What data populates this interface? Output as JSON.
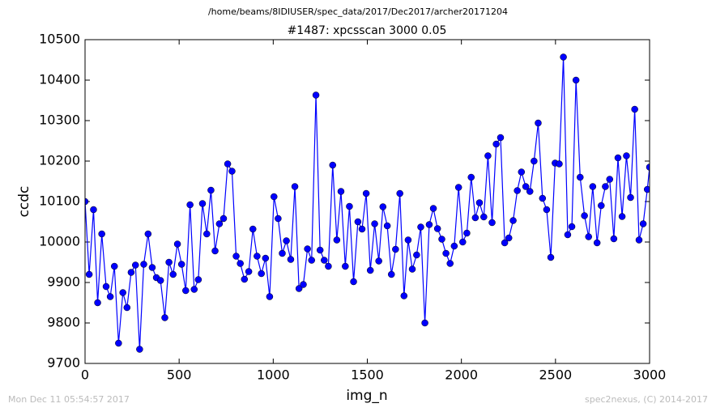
{
  "header": "/home/beams/8IDIUSER/spec_data/2017/Dec2017/archer20171204",
  "footer_left": "Mon Dec 11 05:54:57 2017",
  "footer_right": "spec2nexus, (C) 2014-2017",
  "chart_data": {
    "type": "line",
    "title": "#1487: xpcsscan 3000 0.05",
    "x_label": "img_n",
    "y_label": "ccdc",
    "xlim": [
      0,
      3000
    ],
    "xticks": [
      0,
      500,
      1000,
      1500,
      2000,
      2500,
      3000
    ],
    "ylim": [
      9700,
      10500
    ],
    "yticks": [
      9700,
      9800,
      9900,
      10000,
      10100,
      10200,
      10300,
      10400,
      10500
    ],
    "x": [
      0,
      22,
      45,
      67,
      89,
      112,
      134,
      156,
      178,
      201,
      223,
      245,
      268,
      290,
      312,
      335,
      357,
      379,
      401,
      424,
      446,
      468,
      491,
      513,
      535,
      558,
      580,
      602,
      624,
      647,
      669,
      691,
      714,
      736,
      758,
      781,
      803,
      825,
      847,
      870,
      892,
      914,
      937,
      959,
      981,
      1004,
      1026,
      1048,
      1070,
      1093,
      1115,
      1137,
      1160,
      1182,
      1204,
      1227,
      1249,
      1271,
      1293,
      1316,
      1338,
      1360,
      1383,
      1405,
      1427,
      1450,
      1472,
      1494,
      1516,
      1539,
      1561,
      1583,
      1606,
      1628,
      1650,
      1673,
      1695,
      1717,
      1739,
      1762,
      1784,
      1806,
      1829,
      1851,
      1873,
      1896,
      1918,
      1940,
      1962,
      1985,
      2007,
      2029,
      2052,
      2074,
      2096,
      2119,
      2141,
      2163,
      2185,
      2208,
      2230,
      2252,
      2275,
      2297,
      2319,
      2342,
      2364,
      2386,
      2408,
      2431,
      2453,
      2475,
      2498,
      2520,
      2542,
      2565,
      2587,
      2609,
      2631,
      2654,
      2676,
      2698,
      2721,
      2743,
      2765,
      2788,
      2810,
      2832,
      2854,
      2877,
      2899,
      2921,
      2944,
      2966,
      2988,
      3000
    ],
    "series": [
      {
        "name": "ccdc",
        "color": "#0000ff",
        "values": [
          10100,
          9920,
          10080,
          9850,
          10020,
          9890,
          9865,
          9940,
          9750,
          9875,
          9838,
          9925,
          9943,
          9735,
          9945,
          10020,
          9937,
          9912,
          9905,
          9813,
          9950,
          9920,
          9995,
          9945,
          9880,
          10092,
          9883,
          9907,
          10095,
          10020,
          10128,
          9978,
          10045,
          10058,
          10193,
          10175,
          9965,
          9947,
          9908,
          9927,
          10032,
          9965,
          9922,
          9960,
          9865,
          10112,
          10058,
          9972,
          10003,
          9957,
          10137,
          9885,
          9895,
          9983,
          9955,
          10363,
          9980,
          9955,
          9940,
          10190,
          10005,
          10125,
          9940,
          10088,
          9902,
          10050,
          10032,
          10120,
          9930,
          10045,
          9953,
          10087,
          10040,
          9920,
          9982,
          10120,
          9867,
          10005,
          9933,
          9968,
          10037,
          9800,
          10043,
          10083,
          10033,
          10007,
          9972,
          9947,
          9990,
          10135,
          10000,
          10022,
          10160,
          10060,
          10097,
          10062,
          10213,
          10048,
          10242,
          10258,
          9998,
          10010,
          10053,
          10127,
          10173,
          10137,
          10125,
          10200,
          10294,
          10108,
          10080,
          9962,
          10195,
          10193,
          10457,
          10018,
          10038,
          10400,
          10160,
          10065,
          10013,
          10137,
          9998,
          10090,
          10137,
          10155,
          10008,
          10208,
          10063,
          10213,
          10110,
          10328,
          10005,
          10045,
          10130,
          10185
        ]
      }
    ]
  }
}
